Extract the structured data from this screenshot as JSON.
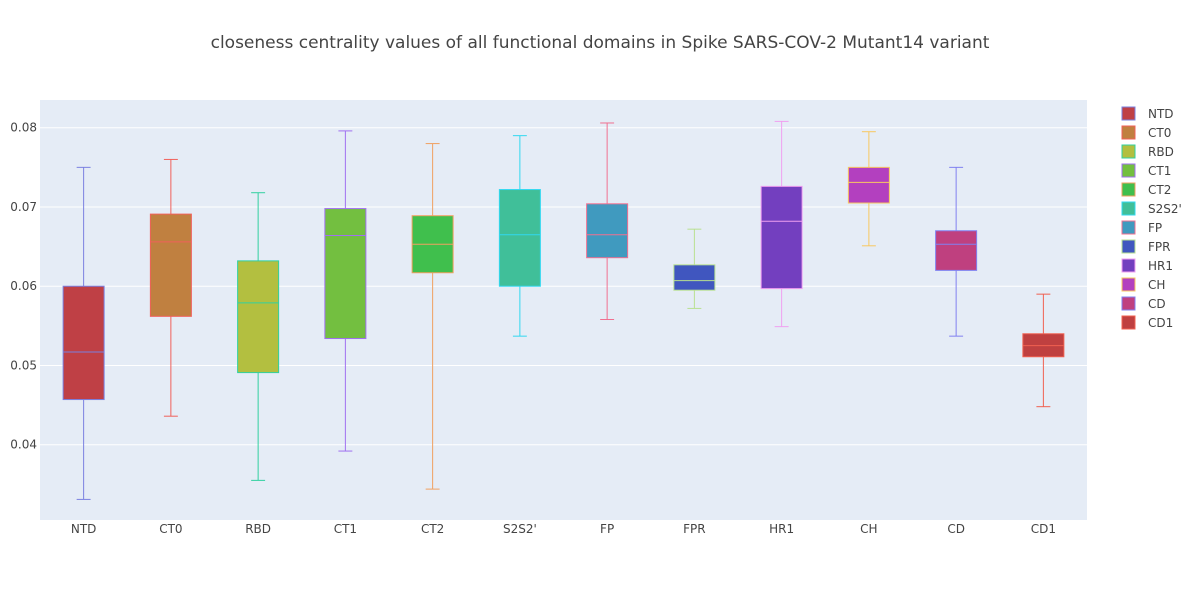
{
  "chart_data": {
    "type": "box",
    "title": "closeness centrality values of all functional domains in Spike SARS-COV-2 Mutant14 variant",
    "xlabel": "",
    "ylabel": "",
    "ylim": [
      0.0305,
      0.0835
    ],
    "yticks": [
      0.04,
      0.05,
      0.06,
      0.07,
      0.08
    ],
    "ytick_labels": [
      "0.04",
      "0.05",
      "0.06",
      "0.07",
      "0.08"
    ],
    "grid": true,
    "legend_position": "right",
    "categories": [
      "NTD",
      "CT0",
      "RBD",
      "CT1",
      "CT2",
      "S2S2'",
      "FP",
      "FPR",
      "HR1",
      "CH",
      "CD",
      "CD1"
    ],
    "series": [
      {
        "name": "NTD",
        "min": 0.0331,
        "q1": 0.0457,
        "median": 0.0517,
        "q3": 0.06,
        "max": 0.075,
        "fill": "#bf4045",
        "line": "#7a80e0"
      },
      {
        "name": "CT0",
        "min": 0.0436,
        "q1": 0.0562,
        "median": 0.0656,
        "q3": 0.0691,
        "max": 0.076,
        "fill": "#c08040",
        "line": "#f0605a"
      },
      {
        "name": "RBD",
        "min": 0.0355,
        "q1": 0.0491,
        "median": 0.0579,
        "q3": 0.0632,
        "max": 0.0718,
        "fill": "#b3bf40",
        "line": "#30d0a0"
      },
      {
        "name": "CT1",
        "min": 0.0392,
        "q1": 0.0534,
        "median": 0.0664,
        "q3": 0.0698,
        "max": 0.0796,
        "fill": "#73bf40",
        "line": "#a070f0"
      },
      {
        "name": "CT2",
        "min": 0.0344,
        "q1": 0.0617,
        "median": 0.0653,
        "q3": 0.0689,
        "max": 0.078,
        "fill": "#40bf4d",
        "line": "#f0a060"
      },
      {
        "name": "S2S2'",
        "min": 0.0537,
        "q1": 0.06,
        "median": 0.0665,
        "q3": 0.0722,
        "max": 0.079,
        "fill": "#40bf99",
        "line": "#30d8f0"
      },
      {
        "name": "FP",
        "min": 0.0558,
        "q1": 0.0636,
        "median": 0.0665,
        "q3": 0.0704,
        "max": 0.0806,
        "fill": "#409abf",
        "line": "#f07090"
      },
      {
        "name": "FPR",
        "min": 0.0572,
        "q1": 0.0595,
        "median": 0.0607,
        "q3": 0.0627,
        "max": 0.0672,
        "fill": "#4056bf",
        "line": "#b8e090"
      },
      {
        "name": "HR1",
        "min": 0.0549,
        "q1": 0.0597,
        "median": 0.0682,
        "q3": 0.0726,
        "max": 0.0808,
        "fill": "#733fbf",
        "line": "#f0a0f0"
      },
      {
        "name": "CH",
        "min": 0.0651,
        "q1": 0.0705,
        "median": 0.0731,
        "q3": 0.075,
        "max": 0.0795,
        "fill": "#b340bf",
        "line": "#f8c860"
      },
      {
        "name": "CD",
        "min": 0.0537,
        "q1": 0.062,
        "median": 0.0653,
        "q3": 0.067,
        "max": 0.075,
        "fill": "#bf407f",
        "line": "#8080f0"
      },
      {
        "name": "CD1",
        "min": 0.0448,
        "q1": 0.0511,
        "median": 0.0525,
        "q3": 0.054,
        "max": 0.059,
        "fill": "#bf4040",
        "line": "#f06050"
      }
    ]
  }
}
